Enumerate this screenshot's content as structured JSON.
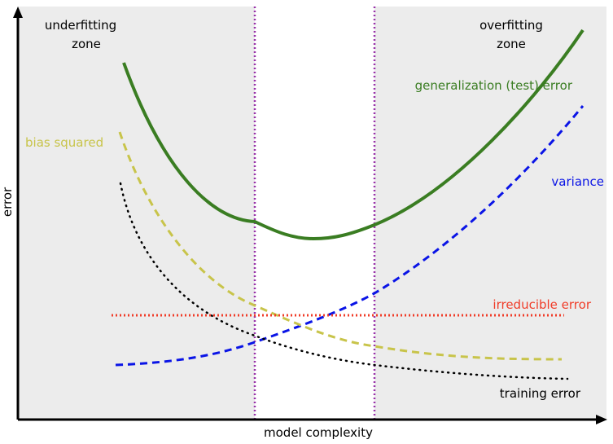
{
  "axes": {
    "x_label": "model complexity",
    "y_label": "error"
  },
  "zones": {
    "underfitting": [
      "underfitting",
      "zone"
    ],
    "overfitting": [
      "overfitting",
      "zone"
    ]
  },
  "curves": {
    "generalization": {
      "label": "generalization (test) error",
      "color": "#3a7d22"
    },
    "variance": {
      "label": "variance",
      "color": "#0a14e6"
    },
    "bias": {
      "label": "bias squared",
      "color": "#c8c44a"
    },
    "irreducible": {
      "label": "irreducible error",
      "color": "#f03c28"
    },
    "training": {
      "label": "training error",
      "color": "#000000"
    }
  },
  "colors": {
    "zone_shading": "#ececec",
    "zone_boundary": "#9933aa"
  }
}
